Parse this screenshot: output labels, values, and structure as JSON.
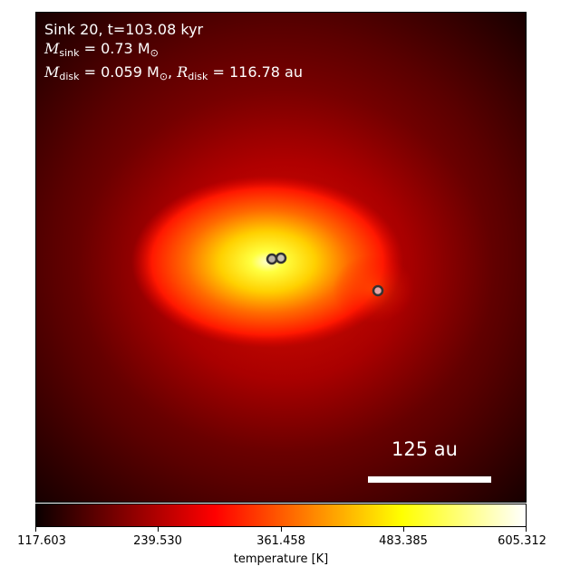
{
  "annotation": {
    "line1": "Sink 20, t=103.08 kyr",
    "msink_symbol": "M",
    "msink_sub": "sink",
    "msink_value": " = 0.73 M",
    "msink_unit_sub": "⊙",
    "mdisk_symbol": "M",
    "mdisk_sub": "disk",
    "mdisk_value": " = 0.059 M",
    "mdisk_unit_sub": "⊙",
    "mdisk_sep": ",  ",
    "rdisk_symbol": "R",
    "rdisk_sub": "disk",
    "rdisk_value": " = 116.78 au"
  },
  "scale_bar": {
    "label": "125 au"
  },
  "colorbar": {
    "colormap": "hot",
    "ticks": [
      "117.603",
      "239.530",
      "361.458",
      "483.385",
      "605.312"
    ],
    "label": "temperature [K]"
  },
  "sinks": [
    {
      "name": "sink-a",
      "fill": "#b9b3a9"
    },
    {
      "name": "sink-b",
      "fill": "#c8c2b6"
    },
    {
      "name": "sink-c",
      "fill": "#e6a6a6"
    }
  ]
}
